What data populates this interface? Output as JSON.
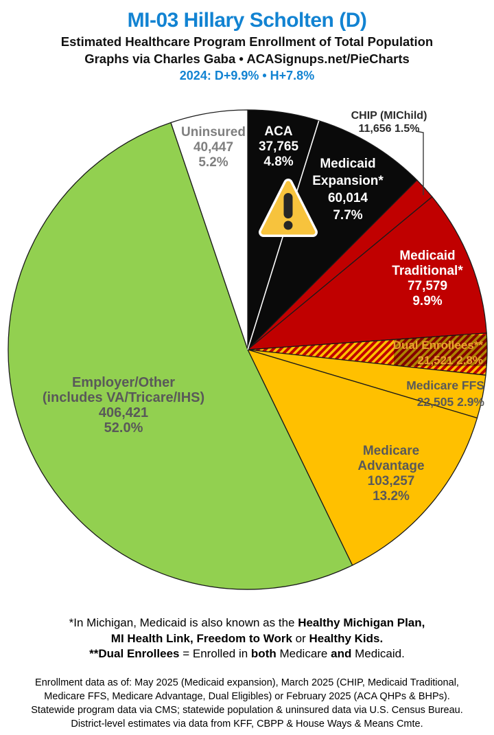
{
  "header": {
    "title": "MI-03 Hillary Scholten (D)",
    "subtitle_line1": "Estimated Healthcare Program Enrollment of Total Population",
    "subtitle_line2": "Graphs via Charles Gaba  •  ACASignups.net/PieCharts",
    "partisan_line": "2024: D+9.9%  •  H+7.8%",
    "accent_color": "#1283D2"
  },
  "chart_data": {
    "type": "pie",
    "title": "MI-03 Estimated Healthcare Program Enrollment of Total Population",
    "units": "people",
    "start_angle_deg": 0,
    "direction": "clockwise",
    "legend_position": "on-slice labels",
    "slices": [
      {
        "name": "ACA",
        "label_lines": [
          "ACA"
        ],
        "value": "37,765",
        "value_num": 37765,
        "pct": 4.8,
        "pct_label": "4.8%",
        "color": "#0A0A0A",
        "text_color": "#FFFFFF"
      },
      {
        "name": "Medicaid Expansion*",
        "label_lines": [
          "Medicaid",
          "Expansion*"
        ],
        "value": "60,014",
        "value_num": 60014,
        "pct": 7.7,
        "pct_label": "7.7%",
        "color": "#0A0A0A",
        "text_color": "#FFFFFF"
      },
      {
        "name": "CHIP (MIChild)",
        "label_lines": [
          "CHIP (MIChild)"
        ],
        "value": "11,656",
        "value_num": 11656,
        "pct": 1.5,
        "pct_label": "1.5%",
        "color": "#C00000",
        "text_color": "#2B2B2B",
        "label_outside": true
      },
      {
        "name": "Medicaid Traditional*",
        "label_lines": [
          "Medicaid",
          "Traditional*"
        ],
        "value": "77,579",
        "value_num": 77579,
        "pct": 9.9,
        "pct_label": "9.9%",
        "color": "#C00000",
        "text_color": "#FFFFFF"
      },
      {
        "name": "Dual Enrollees**",
        "label_lines": [
          "Dual Enrollees**"
        ],
        "value": "21,521",
        "value_num": 21521,
        "pct": 2.8,
        "pct_label": "2.8%",
        "color": "hatch",
        "text_color": "#EDA02F",
        "label_overlay": true
      },
      {
        "name": "Medicare FFS",
        "label_lines": [
          "Medicare FFS"
        ],
        "value": "22,505",
        "value_num": 22505,
        "pct": 2.9,
        "pct_label": "2.9%",
        "color": "#FFC000",
        "text_color": "#595959"
      },
      {
        "name": "Medicare Advantage",
        "label_lines": [
          "Medicare",
          "Advantage"
        ],
        "value": "103,257",
        "value_num": 103257,
        "pct": 13.2,
        "pct_label": "13.2%",
        "color": "#FFC000",
        "text_color": "#595959"
      },
      {
        "name": "Employer/Other (includes VA/Tricare/IHS)",
        "label_lines": [
          "Employer/Other",
          "(includes VA/Tricare/IHS)"
        ],
        "value": "406,421",
        "value_num": 406421,
        "pct": 52.0,
        "pct_label": "52.0%",
        "color": "#92D050",
        "text_color": "#595959"
      },
      {
        "name": "Uninsured",
        "label_lines": [
          "Uninsured"
        ],
        "value": "40,447",
        "value_num": 40447,
        "pct": 5.2,
        "pct_label": "5.2%",
        "color": "#FFFFFF",
        "text_color": "#7F7F7F"
      }
    ],
    "hatch": {
      "colors": [
        "#FFC000",
        "#C00000"
      ],
      "angle_deg": 45
    },
    "slice_border_color": "#1A1A1A",
    "aca_expansion_divider_color": "#FFFFFF",
    "warning_icon_on_slice": "ACA"
  },
  "footnotes": {
    "lines": [
      [
        {
          "text": "*In Michigan, Medicaid is also known as the ",
          "bold": false
        },
        {
          "text": "Healthy Michigan Plan,",
          "bold": true
        }
      ],
      [
        {
          "text": "MI Health Link, Freedom to Work",
          "bold": true
        },
        {
          "text": " or ",
          "bold": false
        },
        {
          "text": "Healthy Kids.",
          "bold": true
        }
      ],
      [
        {
          "text": "**Dual Enrollees",
          "bold": true
        },
        {
          "text": " = Enrolled in ",
          "bold": false
        },
        {
          "text": "both",
          "bold": true
        },
        {
          "text": " Medicare ",
          "bold": false
        },
        {
          "text": "and",
          "bold": true
        },
        {
          "text": " Medicaid.",
          "bold": false
        }
      ]
    ]
  },
  "source": {
    "lines": [
      "Enrollment data as of: May 2025 (Medicaid expansion), March 2025 (CHIP, Medicaid Traditional,",
      "Medicare FFS, Medicare Advantage, Dual Eligibles) or February 2025 (ACA QHPs & BHPs).",
      "Statewide program data via CMS; statewide population & uninsured data via U.S. Census Bureau.",
      "District-level estimates via data from KFF, CBPP & House Ways & Means Cmte."
    ]
  }
}
